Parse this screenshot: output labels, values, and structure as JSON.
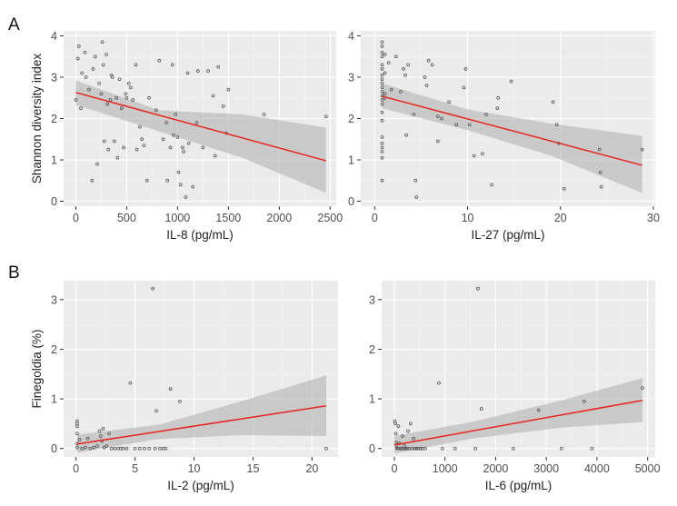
{
  "panel_labels": [
    "A",
    "B"
  ],
  "chart_data": [
    {
      "type": "scatter",
      "panel": "A",
      "xlabel": "IL-8 (pg/mL)",
      "ylabel": "Shannon diversity index",
      "xlim": [
        -120,
        2560
      ],
      "ylim": [
        -0.12,
        4.12
      ],
      "xticks": [
        0,
        500,
        1000,
        1500,
        2000,
        2500
      ],
      "yticks": [
        0,
        1,
        2,
        3,
        4
      ],
      "grid": true,
      "fit": {
        "x": [
          0,
          2460
        ],
        "y": [
          2.63,
          0.98
        ]
      },
      "ci": {
        "x": [
          0,
          820,
          1640,
          2460
        ],
        "upper": [
          2.92,
          2.2,
          2.1,
          1.78
        ],
        "lower": [
          2.33,
          1.69,
          1.05,
          0.2
        ]
      },
      "points": [
        [
          0,
          2.45
        ],
        [
          20,
          3.45
        ],
        [
          30,
          3.75
        ],
        [
          50,
          2.25
        ],
        [
          60,
          3.1
        ],
        [
          90,
          3.6
        ],
        [
          100,
          3.0
        ],
        [
          130,
          2.7
        ],
        [
          160,
          0.5
        ],
        [
          170,
          3.2
        ],
        [
          190,
          3.5
        ],
        [
          210,
          0.9
        ],
        [
          230,
          2.85
        ],
        [
          250,
          2.6
        ],
        [
          260,
          3.85
        ],
        [
          270,
          3.3
        ],
        [
          280,
          1.45
        ],
        [
          300,
          3.55
        ],
        [
          310,
          2.35
        ],
        [
          320,
          1.25
        ],
        [
          340,
          2.45
        ],
        [
          350,
          3.05
        ],
        [
          360,
          3.0
        ],
        [
          380,
          1.45
        ],
        [
          400,
          2.5
        ],
        [
          410,
          1.05
        ],
        [
          430,
          2.95
        ],
        [
          450,
          2.25
        ],
        [
          470,
          1.3
        ],
        [
          490,
          2.6
        ],
        [
          500,
          2.5
        ],
        [
          520,
          2.85
        ],
        [
          540,
          2.75
        ],
        [
          560,
          2.45
        ],
        [
          590,
          3.3
        ],
        [
          600,
          1.25
        ],
        [
          630,
          1.8
        ],
        [
          650,
          1.5
        ],
        [
          670,
          1.35
        ],
        [
          700,
          0.5
        ],
        [
          720,
          2.5
        ],
        [
          790,
          2.2
        ],
        [
          820,
          3.4
        ],
        [
          860,
          1.5
        ],
        [
          890,
          1.9
        ],
        [
          900,
          0.5
        ],
        [
          930,
          1.3
        ],
        [
          950,
          3.3
        ],
        [
          960,
          1.6
        ],
        [
          980,
          2.1
        ],
        [
          1000,
          1.55
        ],
        [
          1010,
          0.7
        ],
        [
          1030,
          0.4
        ],
        [
          1050,
          1.3
        ],
        [
          1060,
          1.2
        ],
        [
          1080,
          0.1
        ],
        [
          1100,
          3.1
        ],
        [
          1110,
          1.4
        ],
        [
          1150,
          0.35
        ],
        [
          1190,
          1.9
        ],
        [
          1200,
          3.15
        ],
        [
          1250,
          1.3
        ],
        [
          1300,
          3.15
        ],
        [
          1350,
          2.55
        ],
        [
          1370,
          1.1
        ],
        [
          1400,
          3.25
        ],
        [
          1450,
          2.3
        ],
        [
          1480,
          1.65
        ],
        [
          1500,
          2.7
        ],
        [
          1850,
          2.1
        ],
        [
          2460,
          2.05
        ]
      ]
    },
    {
      "type": "scatter",
      "panel": "A",
      "xlabel": "IL-27 (pg/mL)",
      "ylabel": "",
      "xlim": [
        -1.5,
        30.2
      ],
      "ylim": [
        -0.12,
        4.12
      ],
      "xticks": [
        0,
        10,
        20,
        30
      ],
      "yticks": [
        0,
        1,
        2,
        3,
        4
      ],
      "grid": true,
      "fit": {
        "x": [
          0.8,
          28.8
        ],
        "y": [
          2.54,
          0.87
        ]
      },
      "ci": {
        "x": [
          0.8,
          10,
          19,
          28.8
        ],
        "upper": [
          2.85,
          2.22,
          1.88,
          1.58
        ],
        "lower": [
          2.25,
          1.72,
          1.1,
          0.2
        ]
      },
      "points": [
        [
          0.8,
          3.75
        ],
        [
          0.8,
          3.6
        ],
        [
          0.8,
          3.5
        ],
        [
          0.8,
          3.3
        ],
        [
          0.8,
          3.2
        ],
        [
          0.8,
          3.05
        ],
        [
          0.8,
          2.95
        ],
        [
          0.8,
          2.85
        ],
        [
          0.8,
          2.75
        ],
        [
          0.8,
          2.65
        ],
        [
          0.8,
          2.55
        ],
        [
          0.8,
          2.45
        ],
        [
          0.8,
          2.35
        ],
        [
          0.8,
          2.15
        ],
        [
          0.8,
          1.95
        ],
        [
          0.8,
          1.55
        ],
        [
          0.8,
          1.4
        ],
        [
          0.8,
          1.3
        ],
        [
          0.8,
          1.2
        ],
        [
          0.8,
          1.05
        ],
        [
          0.8,
          0.5
        ],
        [
          0.8,
          3.85
        ],
        [
          1.1,
          3.55
        ],
        [
          1.1,
          3.1
        ],
        [
          1.1,
          2.6
        ],
        [
          1.1,
          2.5
        ],
        [
          1.5,
          3.35
        ],
        [
          1.8,
          2.7
        ],
        [
          2.3,
          3.5
        ],
        [
          2.8,
          2.65
        ],
        [
          3.1,
          3.2
        ],
        [
          3.3,
          3.05
        ],
        [
          3.4,
          1.6
        ],
        [
          3.6,
          3.3
        ],
        [
          4.2,
          2.1
        ],
        [
          4.4,
          0.5
        ],
        [
          4.5,
          0.1
        ],
        [
          5.4,
          3.0
        ],
        [
          5.6,
          2.8
        ],
        [
          5.8,
          3.4
        ],
        [
          6.2,
          3.3
        ],
        [
          6.8,
          1.45
        ],
        [
          6.8,
          2.05
        ],
        [
          7.2,
          2.0
        ],
        [
          8.0,
          2.4
        ],
        [
          8.8,
          1.85
        ],
        [
          9.6,
          2.75
        ],
        [
          9.8,
          3.2
        ],
        [
          10.2,
          1.85
        ],
        [
          10.7,
          1.1
        ],
        [
          11.6,
          1.15
        ],
        [
          12.0,
          2.1
        ],
        [
          12.6,
          0.4
        ],
        [
          13.2,
          2.25
        ],
        [
          13.3,
          2.5
        ],
        [
          14.7,
          2.9
        ],
        [
          19.2,
          2.4
        ],
        [
          19.6,
          1.85
        ],
        [
          19.8,
          1.4
        ],
        [
          20.4,
          0.3
        ],
        [
          24.2,
          1.25
        ],
        [
          24.3,
          0.7
        ],
        [
          24.4,
          0.35
        ],
        [
          28.8,
          1.25
        ]
      ]
    },
    {
      "type": "scatter",
      "panel": "B",
      "xlabel": "IL-2 (pg/mL)",
      "ylabel": "Finegoldia (%)",
      "xlim": [
        -1.05,
        22.2
      ],
      "ylim": [
        -0.17,
        3.38
      ],
      "xticks": [
        0,
        5,
        10,
        15,
        20
      ],
      "yticks": [
        0,
        1,
        2,
        3
      ],
      "grid": true,
      "fit": {
        "x": [
          0.1,
          21.2
        ],
        "y": [
          0.09,
          0.86
        ]
      },
      "ci": {
        "x": [
          0.1,
          7,
          14,
          21.2
        ],
        "upper": [
          0.28,
          0.48,
          0.95,
          1.47
        ],
        "lower": [
          -0.08,
          0.19,
          0.27,
          0.25
        ]
      },
      "points": [
        [
          0.1,
          0.55
        ],
        [
          0.1,
          0.5
        ],
        [
          0.1,
          0.45
        ],
        [
          0.1,
          0.3
        ],
        [
          0.1,
          0.1
        ],
        [
          0.1,
          0.02
        ],
        [
          0.3,
          0.18
        ],
        [
          0.5,
          0.0
        ],
        [
          0.8,
          0.02
        ],
        [
          1.0,
          0.2
        ],
        [
          1.2,
          0.0
        ],
        [
          1.5,
          0.02
        ],
        [
          1.8,
          0.05
        ],
        [
          2.0,
          0.35
        ],
        [
          2.1,
          0.25
        ],
        [
          2.2,
          0.15
        ],
        [
          2.3,
          0.4
        ],
        [
          2.4,
          0.02
        ],
        [
          2.6,
          0.05
        ],
        [
          2.8,
          0.3
        ],
        [
          3.0,
          0.0
        ],
        [
          3.3,
          0.0
        ],
        [
          3.6,
          0.0
        ],
        [
          3.8,
          0.0
        ],
        [
          4.0,
          0.0
        ],
        [
          4.3,
          0.0
        ],
        [
          4.6,
          1.32
        ],
        [
          5.0,
          0.0
        ],
        [
          5.4,
          0.0
        ],
        [
          5.8,
          0.0
        ],
        [
          6.2,
          0.0
        ],
        [
          6.5,
          3.22
        ],
        [
          6.7,
          0.0
        ],
        [
          6.8,
          0.76
        ],
        [
          7.1,
          0.0
        ],
        [
          7.4,
          0.0
        ],
        [
          7.6,
          0.0
        ],
        [
          8.0,
          1.2
        ],
        [
          8.8,
          0.95
        ],
        [
          21.2,
          0.0
        ]
      ]
    },
    {
      "type": "scatter",
      "panel": "B",
      "xlabel": "IL-6 (pg/mL)",
      "ylabel": "",
      "xlim": [
        -250,
        5150
      ],
      "ylim": [
        -0.17,
        3.38
      ],
      "xticks": [
        0,
        1000,
        2000,
        3000,
        4000,
        5000
      ],
      "yticks": [
        0,
        1,
        2,
        3
      ],
      "grid": true,
      "fit": {
        "x": [
          0,
          4900
        ],
        "y": [
          0.07,
          0.97
        ]
      },
      "ci": {
        "x": [
          0,
          1600,
          3300,
          4900
        ],
        "upper": [
          0.25,
          0.55,
          0.97,
          1.42
        ],
        "lower": [
          -0.1,
          0.21,
          0.42,
          0.53
        ]
      },
      "points": [
        [
          10,
          0.55
        ],
        [
          20,
          0.5
        ],
        [
          30,
          0.3
        ],
        [
          40,
          0.12
        ],
        [
          50,
          0.02
        ],
        [
          60,
          0.0
        ],
        [
          80,
          0.45
        ],
        [
          100,
          0.1
        ],
        [
          120,
          0.0
        ],
        [
          140,
          0.0
        ],
        [
          160,
          0.25
        ],
        [
          180,
          0.0
        ],
        [
          200,
          0.05
        ],
        [
          220,
          0.0
        ],
        [
          250,
          0.0
        ],
        [
          270,
          0.35
        ],
        [
          290,
          0.0
        ],
        [
          320,
          0.5
        ],
        [
          350,
          0.0
        ],
        [
          380,
          0.2
        ],
        [
          410,
          0.0
        ],
        [
          440,
          0.0
        ],
        [
          480,
          0.0
        ],
        [
          520,
          0.0
        ],
        [
          560,
          0.0
        ],
        [
          610,
          0.0
        ],
        [
          880,
          1.32
        ],
        [
          950,
          0.0
        ],
        [
          1200,
          0.0
        ],
        [
          1600,
          0.0
        ],
        [
          1650,
          3.22
        ],
        [
          1720,
          0.8
        ],
        [
          2350,
          0.0
        ],
        [
          2850,
          0.77
        ],
        [
          3300,
          0.0
        ],
        [
          3750,
          0.95
        ],
        [
          3900,
          0.0
        ],
        [
          4900,
          1.22
        ]
      ]
    }
  ]
}
